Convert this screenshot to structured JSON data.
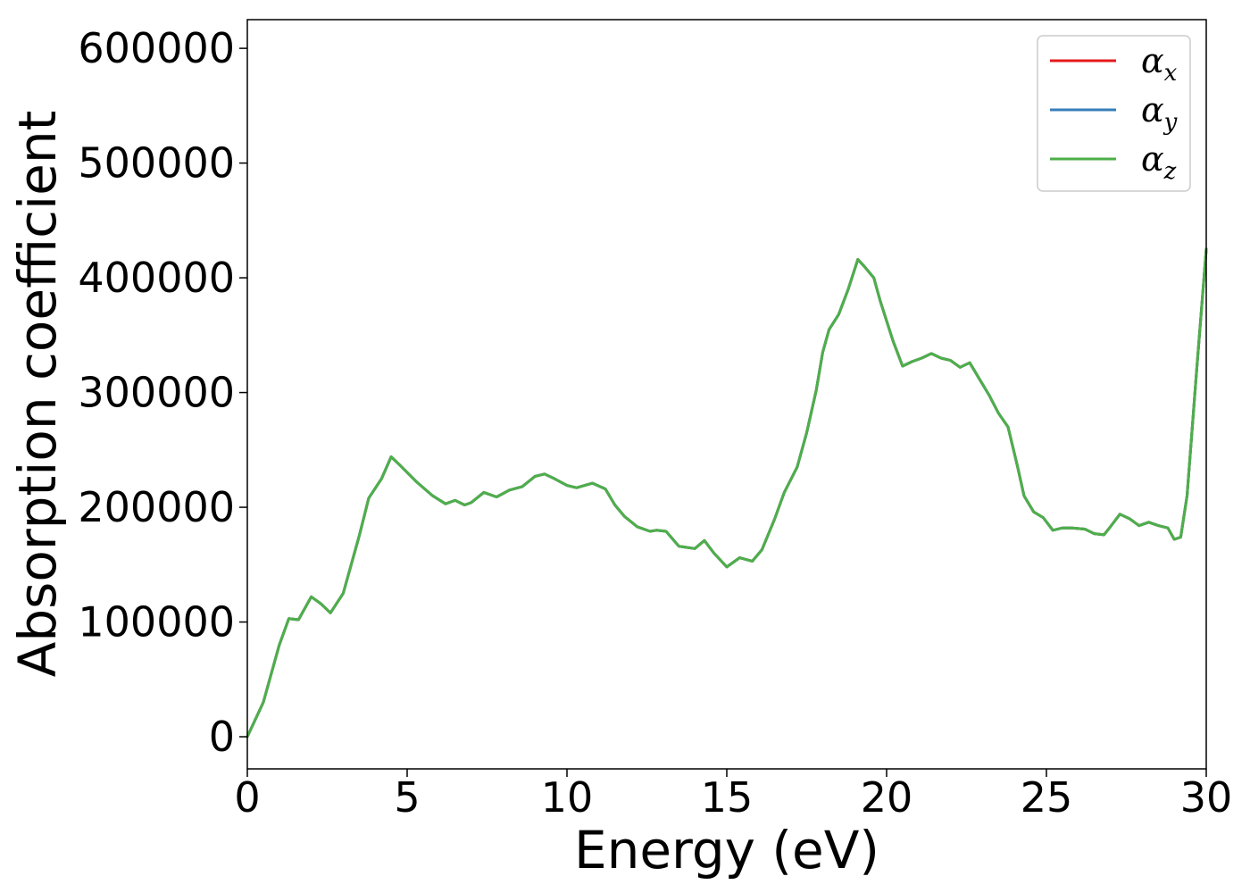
{
  "chart_data": {
    "type": "line",
    "xlabel": "Energy (eV)",
    "ylabel": "Absorption coefficient",
    "xlim": [
      0,
      30
    ],
    "ylim": [
      -28000,
      625000
    ],
    "xticks": [
      0,
      5,
      10,
      15,
      20,
      25,
      30
    ],
    "yticks": [
      0,
      100000,
      200000,
      300000,
      400000,
      500000,
      600000
    ],
    "grid": false,
    "legend_position": "top-right",
    "x": [
      0,
      0.5,
      1.0,
      1.3,
      1.6,
      2.0,
      2.3,
      2.6,
      3.0,
      3.5,
      3.8,
      4.2,
      4.5,
      4.8,
      5.3,
      5.8,
      6.2,
      6.5,
      6.8,
      7.0,
      7.4,
      7.8,
      8.2,
      8.6,
      9.0,
      9.3,
      9.6,
      10.0,
      10.3,
      10.8,
      11.2,
      11.5,
      11.8,
      12.2,
      12.6,
      12.8,
      13.1,
      13.5,
      14.0,
      14.3,
      14.6,
      15.0,
      15.4,
      15.8,
      16.1,
      16.5,
      16.8,
      17.2,
      17.5,
      17.8,
      18.0,
      18.2,
      18.5,
      18.8,
      19.1,
      19.3,
      19.6,
      19.8,
      20.2,
      20.5,
      20.8,
      21.1,
      21.4,
      21.7,
      22.0,
      22.3,
      22.6,
      22.9,
      23.2,
      23.5,
      23.8,
      24.1,
      24.3,
      24.6,
      24.9,
      25.2,
      25.5,
      25.8,
      26.2,
      26.5,
      26.8,
      27.0,
      27.3,
      27.6,
      27.9,
      28.2,
      28.5,
      28.8,
      29.0,
      29.2,
      29.4,
      29.7,
      30.0
    ],
    "series": [
      {
        "name": "α_x",
        "color": "#e41a1c",
        "y": [
          0,
          30000,
          80000,
          103000,
          102000,
          122000,
          116000,
          108000,
          125000,
          175000,
          208000,
          225000,
          244000,
          236000,
          222000,
          210000,
          203000,
          206000,
          202000,
          204000,
          213000,
          209000,
          215000,
          218000,
          227000,
          229000,
          225000,
          219000,
          217000,
          221000,
          216000,
          202000,
          192000,
          183000,
          179000,
          180000,
          179000,
          166000,
          164000,
          171000,
          160000,
          148000,
          156000,
          153000,
          163000,
          190000,
          213000,
          235000,
          265000,
          302000,
          335000,
          355000,
          368000,
          390000,
          416000,
          410000,
          400000,
          380000,
          345000,
          323000,
          327000,
          330000,
          334000,
          330000,
          328000,
          322000,
          326000,
          312000,
          298000,
          282000,
          270000,
          235000,
          210000,
          196000,
          191000,
          180000,
          182000,
          182000,
          181000,
          177000,
          176000,
          183000,
          194000,
          190000,
          184000,
          187000,
          184000,
          182000,
          172000,
          174000,
          210000,
          320000,
          425000
        ]
      },
      {
        "name": "α_y",
        "color": "#377eb8",
        "y": [
          0,
          30000,
          80000,
          103000,
          102000,
          122000,
          116000,
          108000,
          125000,
          175000,
          208000,
          225000,
          244000,
          236000,
          222000,
          210000,
          203000,
          206000,
          202000,
          204000,
          213000,
          209000,
          215000,
          218000,
          227000,
          229000,
          225000,
          219000,
          217000,
          221000,
          216000,
          202000,
          192000,
          183000,
          179000,
          180000,
          179000,
          166000,
          164000,
          171000,
          160000,
          148000,
          156000,
          153000,
          163000,
          190000,
          213000,
          235000,
          265000,
          302000,
          335000,
          355000,
          368000,
          390000,
          416000,
          410000,
          400000,
          380000,
          345000,
          323000,
          327000,
          330000,
          334000,
          330000,
          328000,
          322000,
          326000,
          312000,
          298000,
          282000,
          270000,
          235000,
          210000,
          196000,
          191000,
          180000,
          182000,
          182000,
          181000,
          177000,
          176000,
          183000,
          194000,
          190000,
          184000,
          187000,
          184000,
          182000,
          172000,
          174000,
          210000,
          320000,
          425000
        ]
      },
      {
        "name": "α_z",
        "color": "#4daf4a",
        "y": [
          0,
          30000,
          80000,
          103000,
          102000,
          122000,
          116000,
          108000,
          125000,
          175000,
          208000,
          225000,
          244000,
          236000,
          222000,
          210000,
          203000,
          206000,
          202000,
          204000,
          213000,
          209000,
          215000,
          218000,
          227000,
          229000,
          225000,
          219000,
          217000,
          221000,
          216000,
          202000,
          192000,
          183000,
          179000,
          180000,
          179000,
          166000,
          164000,
          171000,
          160000,
          148000,
          156000,
          153000,
          163000,
          190000,
          213000,
          235000,
          265000,
          302000,
          335000,
          355000,
          368000,
          390000,
          416000,
          410000,
          400000,
          380000,
          345000,
          323000,
          327000,
          330000,
          334000,
          330000,
          328000,
          322000,
          326000,
          312000,
          298000,
          282000,
          270000,
          235000,
          210000,
          196000,
          191000,
          180000,
          182000,
          182000,
          181000,
          177000,
          176000,
          183000,
          194000,
          190000,
          184000,
          187000,
          184000,
          182000,
          172000,
          174000,
          210000,
          320000,
          425000
        ]
      }
    ],
    "legend": [
      {
        "base": "α",
        "sub": "x"
      },
      {
        "base": "α",
        "sub": "y"
      },
      {
        "base": "α",
        "sub": "z"
      }
    ]
  }
}
